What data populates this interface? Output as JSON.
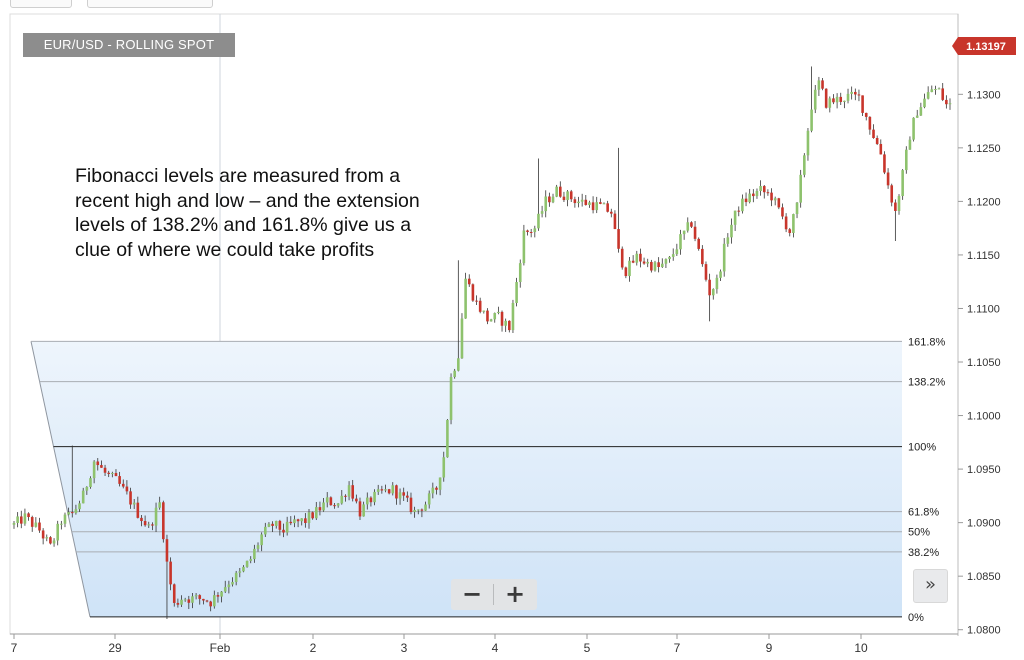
{
  "header": {
    "title": "EUR/USD - ROLLING SPOT",
    "annotation": "Fibonacci levels are measured from a recent high and low – and the extension levels of 138.2% and 161.8% give us a clue of where we could take profits"
  },
  "controls": {
    "zoom_out_label": "−",
    "zoom_in_label": "+",
    "scroll_label": "»"
  },
  "colors": {
    "bull": "#8ec26d",
    "bear": "#c8352b",
    "price_tag": "#c8352b",
    "fib_fill": "#cfe3f7",
    "fib_line": "#a9adb3",
    "fib_main_line": "#222222",
    "grid": "#e4e4e4"
  },
  "chart_data": {
    "type": "candlestick",
    "title": "EUR/USD - ROLLING SPOT",
    "current_price": "1.13197",
    "ylim": [
      1.0796,
      1.1375
    ],
    "y_ticks": [
      "1.0800",
      "1.0850",
      "1.0900",
      "1.0950",
      "1.1000",
      "1.1050",
      "1.1100",
      "1.1150",
      "1.1200",
      "1.1250",
      "1.1300"
    ],
    "x_ticks": [
      "7",
      "29",
      "Feb",
      "2",
      "3",
      "4",
      "5",
      "7",
      "9",
      "10"
    ],
    "fibonacci": {
      "high": 1.0971,
      "low": 1.0812,
      "levels": [
        {
          "label": "161.8%",
          "ratio": 1.618
        },
        {
          "label": "138.2%",
          "ratio": 1.382
        },
        {
          "label": "100%",
          "ratio": 1.0
        },
        {
          "label": "61.8%",
          "ratio": 0.618
        },
        {
          "label": "50%",
          "ratio": 0.5
        },
        {
          "label": "38.2%",
          "ratio": 0.382
        },
        {
          "label": "0%",
          "ratio": 0.0
        }
      ]
    },
    "anchors": [
      {
        "i": 0,
        "p": 1.0898
      },
      {
        "i": 3,
        "p": 1.0905
      },
      {
        "i": 7,
        "p": 1.0893
      },
      {
        "i": 10,
        "p": 1.0877
      },
      {
        "i": 13,
        "p": 1.0902
      },
      {
        "i": 16,
        "p": 1.0908
      },
      {
        "i": 19,
        "p": 1.0925
      },
      {
        "i": 22,
        "p": 1.0958
      },
      {
        "i": 25,
        "p": 1.0946
      },
      {
        "i": 28,
        "p": 1.0939
      },
      {
        "i": 31,
        "p": 1.0926
      },
      {
        "i": 34,
        "p": 1.0909
      },
      {
        "i": 37,
        "p": 1.0895
      },
      {
        "i": 40,
        "p": 1.0918
      },
      {
        "i": 42,
        "p": 1.0862
      },
      {
        "i": 44,
        "p": 1.0823
      },
      {
        "i": 46,
        "p": 1.083
      },
      {
        "i": 49,
        "p": 1.0829
      },
      {
        "i": 52,
        "p": 1.0829
      },
      {
        "i": 54,
        "p": 1.0826
      },
      {
        "i": 56,
        "p": 1.0834
      },
      {
        "i": 59,
        "p": 1.0845
      },
      {
        "i": 62,
        "p": 1.0852
      },
      {
        "i": 65,
        "p": 1.0866
      },
      {
        "i": 68,
        "p": 1.0888
      },
      {
        "i": 71,
        "p": 1.0898
      },
      {
        "i": 74,
        "p": 1.0893
      },
      {
        "i": 77,
        "p": 1.09
      },
      {
        "i": 80,
        "p": 1.0902
      },
      {
        "i": 83,
        "p": 1.091
      },
      {
        "i": 86,
        "p": 1.092
      },
      {
        "i": 89,
        "p": 1.0918
      },
      {
        "i": 92,
        "p": 1.0935
      },
      {
        "i": 95,
        "p": 1.091
      },
      {
        "i": 98,
        "p": 1.0922
      },
      {
        "i": 101,
        "p": 1.0928
      },
      {
        "i": 104,
        "p": 1.0931
      },
      {
        "i": 107,
        "p": 1.0922
      },
      {
        "i": 110,
        "p": 1.091
      },
      {
        "i": 113,
        "p": 1.0918
      },
      {
        "i": 116,
        "p": 1.0932
      },
      {
        "i": 118,
        "p": 1.0962
      },
      {
        "i": 120,
        "p": 1.1035
      },
      {
        "i": 122,
        "p": 1.1058
      },
      {
        "i": 124,
        "p": 1.1128
      },
      {
        "i": 127,
        "p": 1.1105
      },
      {
        "i": 130,
        "p": 1.109
      },
      {
        "i": 133,
        "p": 1.1092
      },
      {
        "i": 136,
        "p": 1.1082
      },
      {
        "i": 138,
        "p": 1.1125
      },
      {
        "i": 140,
        "p": 1.117
      },
      {
        "i": 143,
        "p": 1.1175
      },
      {
        "i": 146,
        "p": 1.12
      },
      {
        "i": 149,
        "p": 1.121
      },
      {
        "i": 152,
        "p": 1.1205
      },
      {
        "i": 155,
        "p": 1.12
      },
      {
        "i": 158,
        "p": 1.1198
      },
      {
        "i": 161,
        "p": 1.1195
      },
      {
        "i": 164,
        "p": 1.119
      },
      {
        "i": 166,
        "p": 1.1152
      },
      {
        "i": 168,
        "p": 1.1135
      },
      {
        "i": 171,
        "p": 1.1148
      },
      {
        "i": 174,
        "p": 1.1142
      },
      {
        "i": 177,
        "p": 1.1138
      },
      {
        "i": 180,
        "p": 1.1145
      },
      {
        "i": 183,
        "p": 1.1165
      },
      {
        "i": 186,
        "p": 1.118
      },
      {
        "i": 189,
        "p": 1.114
      },
      {
        "i": 191,
        "p": 1.1115
      },
      {
        "i": 193,
        "p": 1.1125
      },
      {
        "i": 196,
        "p": 1.117
      },
      {
        "i": 199,
        "p": 1.1195
      },
      {
        "i": 202,
        "p": 1.1205
      },
      {
        "i": 205,
        "p": 1.121
      },
      {
        "i": 208,
        "p": 1.1205
      },
      {
        "i": 211,
        "p": 1.1185
      },
      {
        "i": 213,
        "p": 1.1172
      },
      {
        "i": 215,
        "p": 1.1195
      },
      {
        "i": 217,
        "p": 1.1245
      },
      {
        "i": 219,
        "p": 1.129
      },
      {
        "i": 221,
        "p": 1.131
      },
      {
        "i": 223,
        "p": 1.1292
      },
      {
        "i": 226,
        "p": 1.1295
      },
      {
        "i": 229,
        "p": 1.1298
      },
      {
        "i": 232,
        "p": 1.1297
      },
      {
        "i": 235,
        "p": 1.127
      },
      {
        "i": 238,
        "p": 1.1245
      },
      {
        "i": 240,
        "p": 1.1215
      },
      {
        "i": 242,
        "p": 1.119
      },
      {
        "i": 244,
        "p": 1.1225
      },
      {
        "i": 246,
        "p": 1.1262
      },
      {
        "i": 248,
        "p": 1.1285
      },
      {
        "i": 250,
        "p": 1.1295
      },
      {
        "i": 252,
        "p": 1.1305
      },
      {
        "i": 254,
        "p": 1.1303
      },
      {
        "i": 256,
        "p": 1.129
      }
    ],
    "wick_spikes": [
      {
        "i": 16,
        "p": 1.0972
      },
      {
        "i": 42,
        "p": 1.081
      },
      {
        "i": 122,
        "p": 1.1145
      },
      {
        "i": 144,
        "p": 1.124
      },
      {
        "i": 166,
        "p": 1.125
      },
      {
        "i": 191,
        "p": 1.1088
      },
      {
        "i": 219,
        "p": 1.1326
      },
      {
        "i": 242,
        "p": 1.1163
      }
    ]
  }
}
